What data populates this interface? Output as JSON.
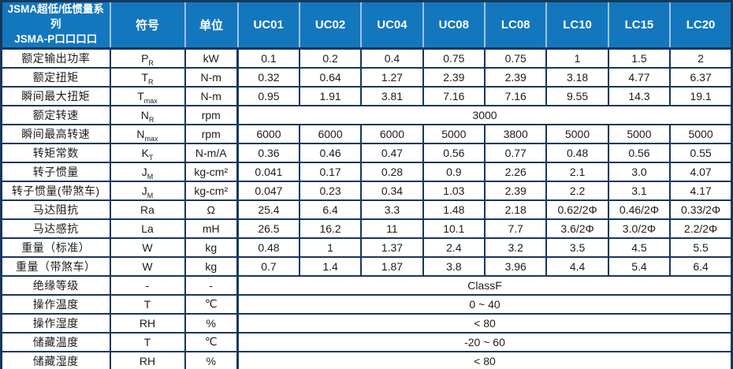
{
  "table": {
    "header": {
      "title_line1": "JSMA超低/低惯量系列",
      "title_line2": "JSMA-P口口口口",
      "symbol_col": "符号",
      "unit_col": "单位",
      "models": [
        "UC01",
        "UC02",
        "UC04",
        "UC08",
        "LC08",
        "LC10",
        "LC15",
        "LC20"
      ]
    },
    "rows": [
      {
        "label": "额定输出功率",
        "symbol": "P",
        "symbol_sub": "R",
        "unit": "kW",
        "values": [
          "0.1",
          "0.2",
          "0.4",
          "0.75",
          "0.75",
          "1",
          "1.5",
          "2"
        ]
      },
      {
        "label": "额定扭矩",
        "symbol": "T",
        "symbol_sub": "R",
        "unit": "N-m",
        "values": [
          "0.32",
          "0.64",
          "1.27",
          "2.39",
          "2.39",
          "3.18",
          "4.77",
          "6.37"
        ]
      },
      {
        "label": "瞬间最大扭矩",
        "symbol": "T",
        "symbol_sub": "max",
        "unit": "N-m",
        "values": [
          "0.95",
          "1.91",
          "3.81",
          "7.16",
          "7.16",
          "9.55",
          "14.3",
          "19.1"
        ]
      },
      {
        "label": "额定转速",
        "symbol": "N",
        "symbol_sub": "R",
        "unit": "rpm",
        "merged_value": "3000"
      },
      {
        "label": "瞬间最高转速",
        "symbol": "N",
        "symbol_sub": "max",
        "unit": "rpm",
        "values": [
          "6000",
          "6000",
          "6000",
          "5000",
          "3800",
          "5000",
          "5000",
          "5000"
        ]
      },
      {
        "label": "转矩常数",
        "symbol": "K",
        "symbol_sub": "T",
        "unit": "N-m/A",
        "values": [
          "0.36",
          "0.46",
          "0.47",
          "0.56",
          "0.77",
          "0.48",
          "0.56",
          "0.55"
        ]
      },
      {
        "label": "转子惯量",
        "symbol": "J",
        "symbol_sub": "M",
        "unit": "kg-cm²",
        "values": [
          "0.041",
          "0.17",
          "0.28",
          "0.9",
          "2.26",
          "2.1",
          "3.0",
          "4.07"
        ]
      },
      {
        "label": "转子惯量(带煞车)",
        "symbol": "J",
        "symbol_sub": "M",
        "unit": "kg-cm²",
        "values": [
          "0.047",
          "0.23",
          "0.34",
          "1.03",
          "2.39",
          "2.2",
          "3.1",
          "4.17"
        ]
      },
      {
        "label": "马达阻抗",
        "symbol": "Ra",
        "symbol_sub": "",
        "unit": "Ω",
        "values": [
          "25.4",
          "6.4",
          "3.3",
          "1.48",
          "2.18",
          "0.62/2Φ",
          "0.46/2Φ",
          "0.33/2Φ"
        ]
      },
      {
        "label": "马达感抗",
        "symbol": "La",
        "symbol_sub": "",
        "unit": "mH",
        "values": [
          "26.5",
          "16.2",
          "11",
          "10.1",
          "7.7",
          "3.6/2Φ",
          "3.0/2Φ",
          "2.2/2Φ"
        ]
      },
      {
        "label": "重量（标准）",
        "symbol": "W",
        "symbol_sub": "",
        "unit": "kg",
        "values": [
          "0.48",
          "1",
          "1.37",
          "2.4",
          "3.2",
          "3.5",
          "4.5",
          "5.5"
        ]
      },
      {
        "label": "重量（带煞车）",
        "symbol": "W",
        "symbol_sub": "",
        "unit": "kg",
        "values": [
          "0.7",
          "1.4",
          "1.87",
          "3.8",
          "3.96",
          "4.4",
          "5.4",
          "6.4"
        ]
      },
      {
        "label": "绝缘等级",
        "symbol": "-",
        "symbol_sub": "",
        "unit": "-",
        "merged_value": "ClassF"
      },
      {
        "label": "操作温度",
        "symbol": "T",
        "symbol_sub": "",
        "unit": "℃",
        "merged_value": "0 ~ 40"
      },
      {
        "label": "操作湿度",
        "symbol": "RH",
        "symbol_sub": "",
        "unit": "%",
        "merged_value": "< 80"
      },
      {
        "label": "储藏温度",
        "symbol": "T",
        "symbol_sub": "",
        "unit": "℃",
        "merged_value": "-20 ~ 60"
      },
      {
        "label": "储藏湿度",
        "symbol": "RH",
        "symbol_sub": "",
        "unit": "%",
        "merged_value": "< 80"
      }
    ],
    "colors": {
      "header_bg": "#1377bd",
      "header_text": "#ffffff",
      "header_separator": "#9dc3e6",
      "grid_border": "#17375e",
      "body_text": "#1c1c1c",
      "background": "#ffffff"
    }
  }
}
